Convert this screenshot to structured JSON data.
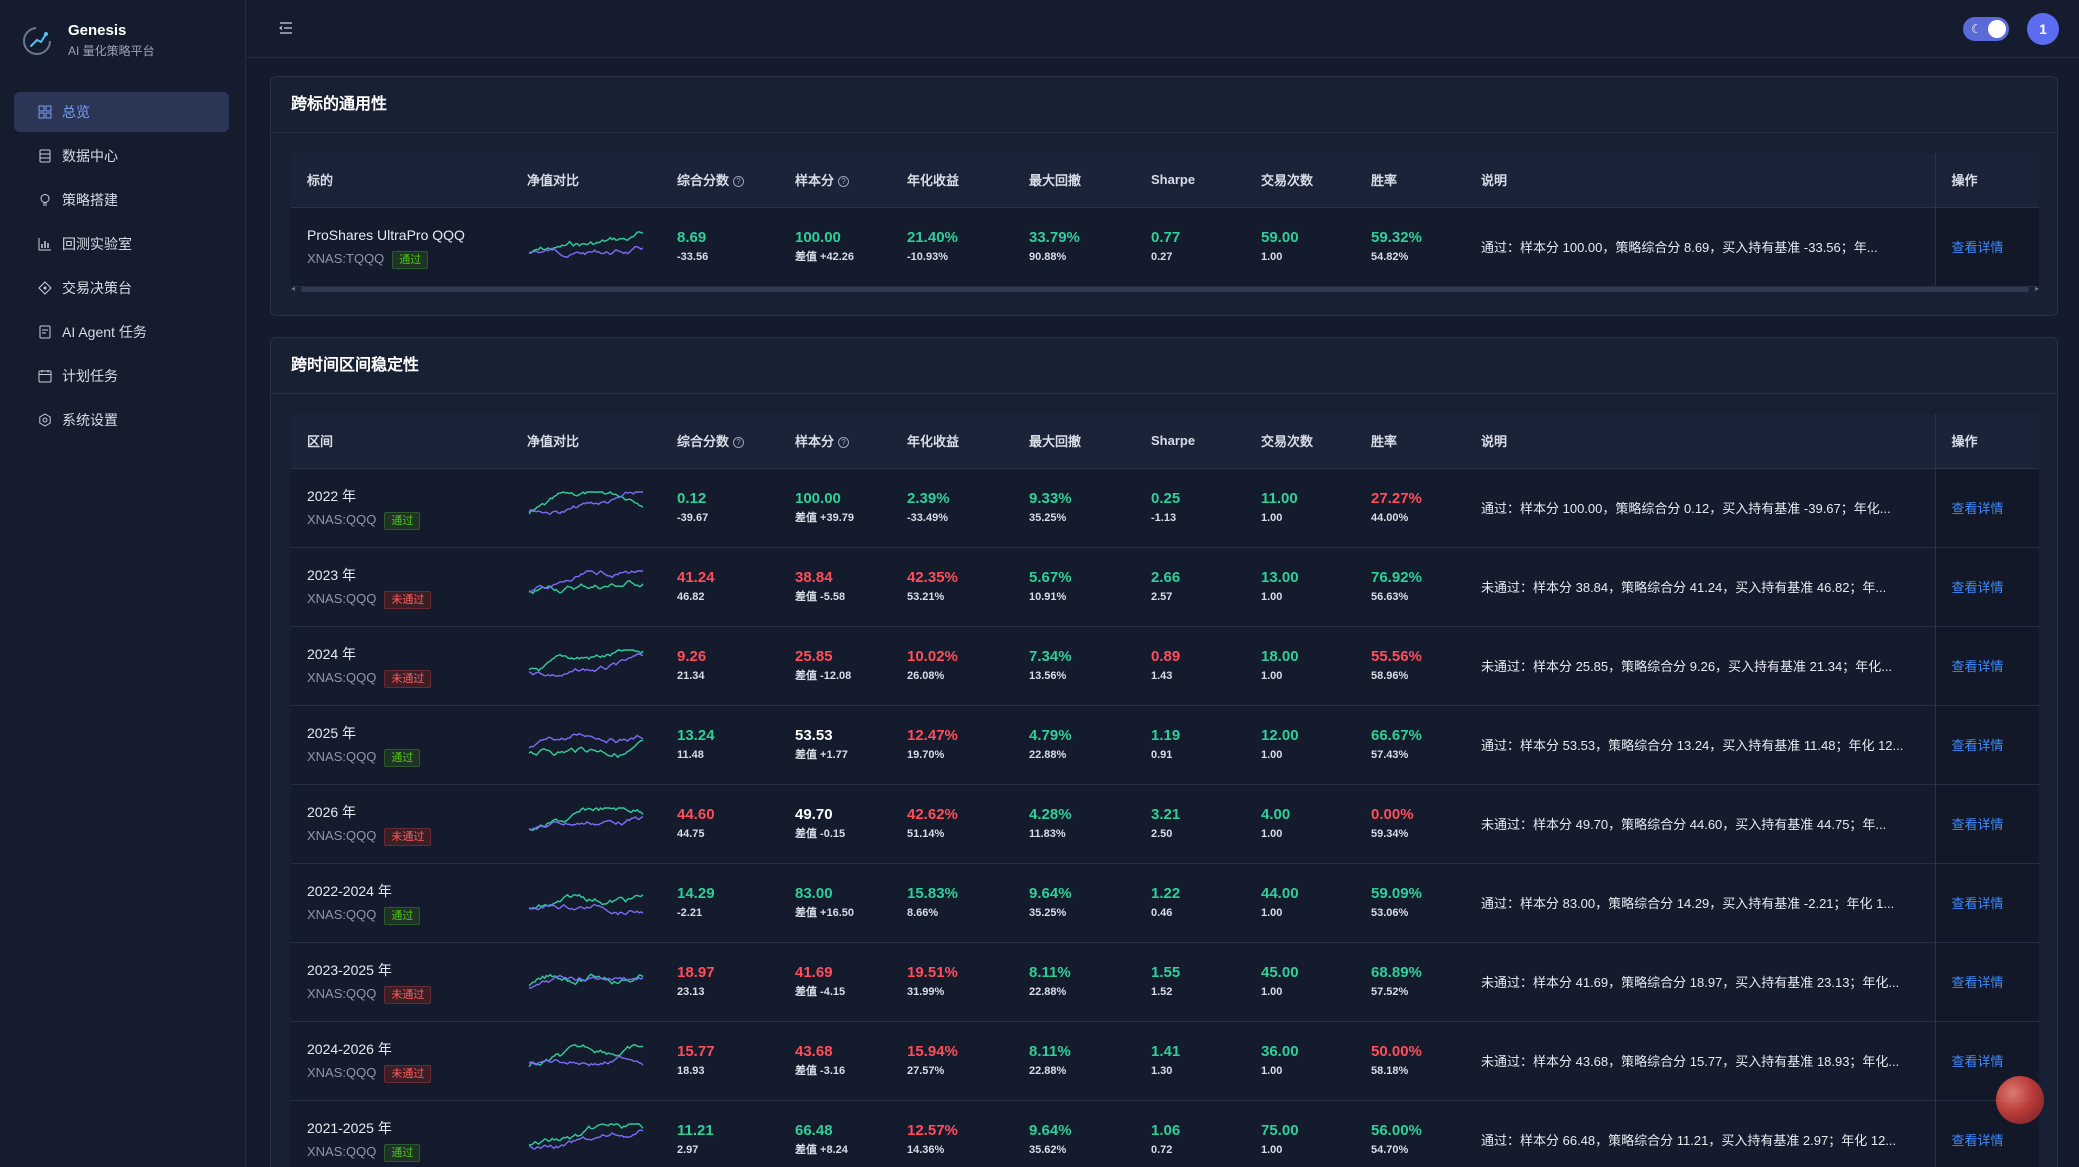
{
  "brand": {
    "title": "Genesis",
    "subtitle": "AI 量化策略平台"
  },
  "nav": [
    {
      "label": "总览",
      "icon": "dashboard-grid-icon",
      "active": true
    },
    {
      "label": "数据中心",
      "icon": "database-icon",
      "active": false
    },
    {
      "label": "策略搭建",
      "icon": "lightbulb-icon",
      "active": false
    },
    {
      "label": "回测实验室",
      "icon": "bar-chart-icon",
      "active": false
    },
    {
      "label": "交易决策台",
      "icon": "diamond-icon",
      "active": false
    },
    {
      "label": "AI Agent 任务",
      "icon": "robot-icon",
      "active": false
    },
    {
      "label": "计划任务",
      "icon": "calendar-icon",
      "active": false
    },
    {
      "label": "系统设置",
      "icon": "gear-icon",
      "active": false
    }
  ],
  "header": {
    "avatar_text": "1",
    "theme_icon": "moon-icon",
    "theme_mode": "dark"
  },
  "cross_target": {
    "title": "跨标的通用性",
    "columns": [
      "标的",
      "净值对比",
      "综合分数",
      "样本分",
      "年化收益",
      "最大回撤",
      "Sharpe",
      "交易次数",
      "胜率",
      "说明",
      "操作"
    ],
    "rows": [
      {
        "name": "ProShares UltraPro QQQ",
        "code": "XNAS:TQQQ",
        "status": "通过",
        "pass": true,
        "score": "8.69",
        "score_sub": "-33.56",
        "score_color": "green",
        "sample": "100.00",
        "sample_sub": "差值 +42.26",
        "sample_color": "green",
        "annual": "21.40%",
        "annual_sub": "-10.93%",
        "annual_color": "green",
        "drawdown": "33.79%",
        "drawdown_sub": "90.88%",
        "drawdown_color": "green",
        "sharpe": "0.77",
        "sharpe_sub": "0.27",
        "sharpe_color": "green",
        "trades": "59.00",
        "trades_sub": "1.00",
        "trades_color": "green",
        "win": "59.32%",
        "win_sub": "54.82%",
        "win_color": "green",
        "desc": "通过：样本分 100.00，策略综合分 8.69，买入持有基准 -33.56；年...",
        "action": "查看详情"
      }
    ]
  },
  "cross_period": {
    "title": "跨时间区间稳定性",
    "columns": [
      "区间",
      "净值对比",
      "综合分数",
      "样本分",
      "年化收益",
      "最大回撤",
      "Sharpe",
      "交易次数",
      "胜率",
      "说明",
      "操作"
    ],
    "rows": [
      {
        "name": "2022 年",
        "code": "XNAS:QQQ",
        "status": "通过",
        "pass": true,
        "score": "0.12",
        "score_sub": "-39.67",
        "score_color": "green",
        "sample": "100.00",
        "sample_sub": "差值 +39.79",
        "sample_color": "green",
        "annual": "2.39%",
        "annual_sub": "-33.49%",
        "annual_color": "green",
        "drawdown": "9.33%",
        "drawdown_sub": "35.25%",
        "drawdown_color": "green",
        "sharpe": "0.25",
        "sharpe_sub": "-1.13",
        "sharpe_color": "green",
        "trades": "11.00",
        "trades_sub": "1.00",
        "trades_color": "green",
        "win": "27.27%",
        "win_sub": "44.00%",
        "win_color": "red",
        "desc": "通过：样本分 100.00，策略综合分 0.12，买入持有基准 -39.67；年化...",
        "action": "查看详情"
      },
      {
        "name": "2023 年",
        "code": "XNAS:QQQ",
        "status": "未通过",
        "pass": false,
        "score": "41.24",
        "score_sub": "46.82",
        "score_color": "red",
        "sample": "38.84",
        "sample_sub": "差值 -5.58",
        "sample_color": "red",
        "annual": "42.35%",
        "annual_sub": "53.21%",
        "annual_color": "red",
        "drawdown": "5.67%",
        "drawdown_sub": "10.91%",
        "drawdown_color": "green",
        "sharpe": "2.66",
        "sharpe_sub": "2.57",
        "sharpe_color": "green",
        "trades": "13.00",
        "trades_sub": "1.00",
        "trades_color": "green",
        "win": "76.92%",
        "win_sub": "56.63%",
        "win_color": "green",
        "desc": "未通过：样本分 38.84，策略综合分 41.24，买入持有基准 46.82；年...",
        "action": "查看详情"
      },
      {
        "name": "2024 年",
        "code": "XNAS:QQQ",
        "status": "未通过",
        "pass": false,
        "score": "9.26",
        "score_sub": "21.34",
        "score_color": "red",
        "sample": "25.85",
        "sample_sub": "差值 -12.08",
        "sample_color": "red",
        "annual": "10.02%",
        "annual_sub": "26.08%",
        "annual_color": "red",
        "drawdown": "7.34%",
        "drawdown_sub": "13.56%",
        "drawdown_color": "green",
        "sharpe": "0.89",
        "sharpe_sub": "1.43",
        "sharpe_color": "red",
        "trades": "18.00",
        "trades_sub": "1.00",
        "trades_color": "green",
        "win": "55.56%",
        "win_sub": "58.96%",
        "win_color": "red",
        "desc": "未通过：样本分 25.85，策略综合分 9.26，买入持有基准 21.34；年化...",
        "action": "查看详情"
      },
      {
        "name": "2025 年",
        "code": "XNAS:QQQ",
        "status": "通过",
        "pass": true,
        "score": "13.24",
        "score_sub": "11.48",
        "score_color": "green",
        "sample": "53.53",
        "sample_sub": "差值 +1.77",
        "sample_color": "white",
        "annual": "12.47%",
        "annual_sub": "19.70%",
        "annual_color": "red",
        "drawdown": "4.79%",
        "drawdown_sub": "22.88%",
        "drawdown_color": "green",
        "sharpe": "1.19",
        "sharpe_sub": "0.91",
        "sharpe_color": "green",
        "trades": "12.00",
        "trades_sub": "1.00",
        "trades_color": "green",
        "win": "66.67%",
        "win_sub": "57.43%",
        "win_color": "green",
        "desc": "通过：样本分 53.53，策略综合分 13.24，买入持有基准 11.48；年化 12...",
        "action": "查看详情"
      },
      {
        "name": "2026 年",
        "code": "XNAS:QQQ",
        "status": "未通过",
        "pass": false,
        "score": "44.60",
        "score_sub": "44.75",
        "score_color": "red",
        "sample": "49.70",
        "sample_sub": "差值 -0.15",
        "sample_color": "white",
        "annual": "42.62%",
        "annual_sub": "51.14%",
        "annual_color": "red",
        "drawdown": "4.28%",
        "drawdown_sub": "11.83%",
        "drawdown_color": "green",
        "sharpe": "3.21",
        "sharpe_sub": "2.50",
        "sharpe_color": "green",
        "trades": "4.00",
        "trades_sub": "1.00",
        "trades_color": "green",
        "win": "0.00%",
        "win_sub": "59.34%",
        "win_color": "red",
        "desc": "未通过：样本分 49.70，策略综合分 44.60，买入持有基准 44.75；年...",
        "action": "查看详情"
      },
      {
        "name": "2022-2024 年",
        "code": "XNAS:QQQ",
        "status": "通过",
        "pass": true,
        "score": "14.29",
        "score_sub": "-2.21",
        "score_color": "green",
        "sample": "83.00",
        "sample_sub": "差值 +16.50",
        "sample_color": "green",
        "annual": "15.83%",
        "annual_sub": "8.66%",
        "annual_color": "green",
        "drawdown": "9.64%",
        "drawdown_sub": "35.25%",
        "drawdown_color": "green",
        "sharpe": "1.22",
        "sharpe_sub": "0.46",
        "sharpe_color": "green",
        "trades": "44.00",
        "trades_sub": "1.00",
        "trades_color": "green",
        "win": "59.09%",
        "win_sub": "53.06%",
        "win_color": "green",
        "desc": "通过：样本分 83.00，策略综合分 14.29，买入持有基准 -2.21；年化 1...",
        "action": "查看详情"
      },
      {
        "name": "2023-2025 年",
        "code": "XNAS:QQQ",
        "status": "未通过",
        "pass": false,
        "score": "18.97",
        "score_sub": "23.13",
        "score_color": "red",
        "sample": "41.69",
        "sample_sub": "差值 -4.15",
        "sample_color": "red",
        "annual": "19.51%",
        "annual_sub": "31.99%",
        "annual_color": "red",
        "drawdown": "8.11%",
        "drawdown_sub": "22.88%",
        "drawdown_color": "green",
        "sharpe": "1.55",
        "sharpe_sub": "1.52",
        "sharpe_color": "green",
        "trades": "45.00",
        "trades_sub": "1.00",
        "trades_color": "green",
        "win": "68.89%",
        "win_sub": "57.52%",
        "win_color": "green",
        "desc": "未通过：样本分 41.69，策略综合分 18.97，买入持有基准 23.13；年化...",
        "action": "查看详情"
      },
      {
        "name": "2024-2026 年",
        "code": "XNAS:QQQ",
        "status": "未通过",
        "pass": false,
        "score": "15.77",
        "score_sub": "18.93",
        "score_color": "red",
        "sample": "43.68",
        "sample_sub": "差值 -3.16",
        "sample_color": "red",
        "annual": "15.94%",
        "annual_sub": "27.57%",
        "annual_color": "red",
        "drawdown": "8.11%",
        "drawdown_sub": "22.88%",
        "drawdown_color": "green",
        "sharpe": "1.41",
        "sharpe_sub": "1.30",
        "sharpe_color": "green",
        "trades": "36.00",
        "trades_sub": "1.00",
        "trades_color": "green",
        "win": "50.00%",
        "win_sub": "58.18%",
        "win_color": "red",
        "desc": "未通过：样本分 43.68，策略综合分 15.77，买入持有基准 18.93；年化...",
        "action": "查看详情"
      },
      {
        "name": "2021-2025 年",
        "code": "XNAS:QQQ",
        "status": "通过",
        "pass": true,
        "score": "11.21",
        "score_sub": "2.97",
        "score_color": "green",
        "sample": "66.48",
        "sample_sub": "差值 +8.24",
        "sample_color": "green",
        "annual": "12.57%",
        "annual_sub": "14.36%",
        "annual_color": "red",
        "drawdown": "9.64%",
        "drawdown_sub": "35.62%",
        "drawdown_color": "green",
        "sharpe": "1.06",
        "sharpe_sub": "0.72",
        "sharpe_color": "green",
        "trades": "75.00",
        "trades_sub": "1.00",
        "trades_color": "green",
        "win": "56.00%",
        "win_sub": "54.70%",
        "win_color": "green",
        "desc": "通过：样本分 66.48，策略综合分 11.21，买入持有基准 2.97；年化 12...",
        "action": "查看详情"
      }
    ]
  },
  "colors": {
    "green": "#2fcf9a",
    "red": "#ff4d5a",
    "accent": "#5b6cf0",
    "link": "#3d8bff",
    "spark_strategy": "#7b6cf6",
    "spark_benchmark": "#2fcf9a"
  }
}
